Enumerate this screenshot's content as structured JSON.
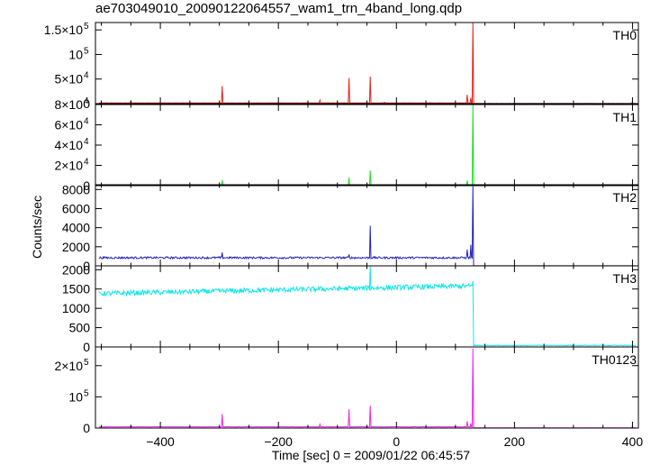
{
  "chart_data": {
    "type": "line",
    "title": "ae703049010_20090122064557_wam1_trn_4band_long.qdp",
    "xlabel": "Time [sec] 0 = 2009/01/22 06:45:57",
    "ylabel": "Counts/sec",
    "xlim": [
      -510,
      410
    ],
    "x_ticks": [
      -400,
      -200,
      0,
      200,
      400
    ],
    "x_tick_labels": [
      "−400",
      "−200",
      "0",
      "200",
      "400"
    ],
    "event_time": 130,
    "panels": [
      {
        "name": "TH0",
        "color": "#e8201a",
        "ylim": [
          0,
          165000
        ],
        "y_ticks": [
          {
            "v": 0,
            "label": "0"
          },
          {
            "v": 50000,
            "label": "5×10",
            "exp": "4"
          },
          {
            "v": 100000,
            "label": "10",
            "exp": "5"
          },
          {
            "v": 150000,
            "label": "1.5×10",
            "exp": "5"
          }
        ],
        "pre_level": 1500,
        "post_level": 300,
        "spikes": [
          [
            -450,
            5000
          ],
          [
            -295,
            36000
          ],
          [
            -130,
            7000
          ],
          [
            -80,
            52000
          ],
          [
            -45,
            55000
          ],
          [
            -20,
            3000
          ],
          [
            120,
            18000
          ],
          [
            126,
            12000
          ],
          [
            130,
            165000
          ],
          [
            400,
            3000
          ]
        ]
      },
      {
        "name": "TH1",
        "color": "#22dd22",
        "ylim": [
          0,
          80000
        ],
        "y_ticks": [
          {
            "v": 0,
            "label": "0"
          },
          {
            "v": 20000,
            "label": "2×10",
            "exp": "4"
          },
          {
            "v": 40000,
            "label": "4×10",
            "exp": "4"
          },
          {
            "v": 60000,
            "label": "6×10",
            "exp": "4"
          },
          {
            "v": 80000,
            "label": "8×10",
            "exp": "4"
          }
        ],
        "pre_level": 500,
        "post_level": 150,
        "spikes": [
          [
            -295,
            5500
          ],
          [
            -80,
            8000
          ],
          [
            -45,
            15000
          ],
          [
            120,
            5000
          ],
          [
            130,
            80000
          ]
        ]
      },
      {
        "name": "TH2",
        "color": "#2222bb",
        "ylim": [
          0,
          8500
        ],
        "y_ticks": [
          {
            "v": 0,
            "label": "0"
          },
          {
            "v": 2000,
            "label": "2000"
          },
          {
            "v": 4000,
            "label": "4000"
          },
          {
            "v": 6000,
            "label": "6000"
          },
          {
            "v": 8000,
            "label": "8000"
          }
        ],
        "pre_level": 850,
        "post_level": 10,
        "spikes": [
          [
            -295,
            1400
          ],
          [
            -80,
            1200
          ],
          [
            -45,
            4200
          ],
          [
            120,
            1700
          ],
          [
            126,
            2200
          ],
          [
            130,
            8500
          ]
        ]
      },
      {
        "name": "TH3",
        "color": "#11e6e6",
        "ylim": [
          0,
          2100
        ],
        "y_ticks": [
          {
            "v": 0,
            "label": "0"
          },
          {
            "v": 500,
            "label": "500"
          },
          {
            "v": 1000,
            "label": "1000"
          },
          {
            "v": 1500,
            "label": "1500"
          },
          {
            "v": 2000,
            "label": "2000"
          }
        ],
        "pre_level_start": 1380,
        "pre_level_end": 1580,
        "post_level": 40,
        "spikes": [
          [
            -45,
            2100
          ],
          [
            130,
            1700
          ]
        ]
      },
      {
        "name": "TH0123",
        "color": "#ee22ee",
        "ylim": [
          0,
          260000
        ],
        "y_ticks": [
          {
            "v": 0,
            "label": "0"
          },
          {
            "v": 100000,
            "label": "10",
            "exp": "5"
          },
          {
            "v": 200000,
            "label": "2×10",
            "exp": "5"
          }
        ],
        "pre_level": 4000,
        "post_level": 600,
        "spikes": [
          [
            -450,
            8000
          ],
          [
            -295,
            45000
          ],
          [
            -130,
            12000
          ],
          [
            -80,
            60000
          ],
          [
            -45,
            72000
          ],
          [
            120,
            22000
          ],
          [
            126,
            15000
          ],
          [
            130,
            255000
          ],
          [
            400,
            5000
          ]
        ]
      }
    ]
  }
}
